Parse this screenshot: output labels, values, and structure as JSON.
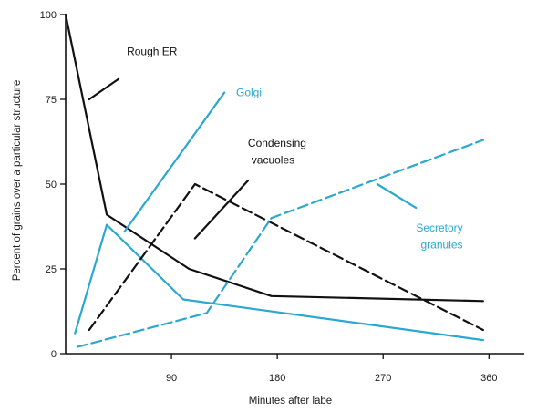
{
  "chart_data": {
    "type": "line",
    "xlabel": "Minutes after labe",
    "ylabel": "Percent of grains over a particular structure",
    "xlim": [
      0,
      390
    ],
    "ylim": [
      0,
      100
    ],
    "x_ticks": [
      {
        "value": 90,
        "label": "90"
      },
      {
        "value": 180,
        "label": "180"
      },
      {
        "value": 270,
        "label": "270"
      },
      {
        "value": 360,
        "label": "360"
      }
    ],
    "y_ticks": [
      {
        "value": 0,
        "label": "0"
      },
      {
        "value": 25,
        "label": "25"
      },
      {
        "value": 50,
        "label": "50"
      },
      {
        "value": 75,
        "label": "75"
      },
      {
        "value": 100,
        "label": "100"
      }
    ],
    "grid": false,
    "series": [
      {
        "name": "Rough ER",
        "color": "#111111",
        "dashed": false,
        "points": [
          [
            0,
            100
          ],
          [
            35,
            41
          ],
          [
            105,
            25
          ],
          [
            175,
            17
          ],
          [
            355,
            15.5
          ]
        ]
      },
      {
        "name": "Golgi",
        "color": "#2aa8cf",
        "dashed": false,
        "points": [
          [
            8,
            6
          ],
          [
            35,
            38
          ],
          [
            100,
            16
          ],
          [
            355,
            4
          ]
        ]
      },
      {
        "name": "Condensing vacuoles",
        "color": "#111111",
        "dashed": true,
        "points": [
          [
            20,
            7
          ],
          [
            110,
            50
          ],
          [
            355,
            7
          ]
        ]
      },
      {
        "name": "Secretory granules",
        "color": "#2aa8cf",
        "dashed": true,
        "points": [
          [
            10,
            2
          ],
          [
            120,
            12
          ],
          [
            175,
            40
          ],
          [
            355,
            63
          ]
        ]
      }
    ],
    "annotations": [
      {
        "text": "Rough ER",
        "style": "dark",
        "x": 52,
        "y": 88,
        "line": [
          [
            45,
            81
          ],
          [
            20,
            75
          ]
        ]
      },
      {
        "text": "Golgi",
        "style": "blue",
        "x": 145,
        "y": 76,
        "line": [
          [
            135,
            77
          ],
          [
            50,
            36
          ]
        ]
      },
      {
        "text": "Condensing",
        "style": "dark",
        "x": 155,
        "y": 61,
        "line": [
          [
            155,
            51
          ],
          [
            110,
            34
          ]
        ]
      },
      {
        "text": "vacuoles",
        "style": "dark",
        "x": 158,
        "y": 56
      },
      {
        "text": "Secretory",
        "style": "blue",
        "x": 298,
        "y": 36,
        "line": [
          [
            298,
            43
          ],
          [
            265,
            50
          ]
        ]
      },
      {
        "text": "granules",
        "style": "blue",
        "x": 302,
        "y": 31
      }
    ]
  }
}
